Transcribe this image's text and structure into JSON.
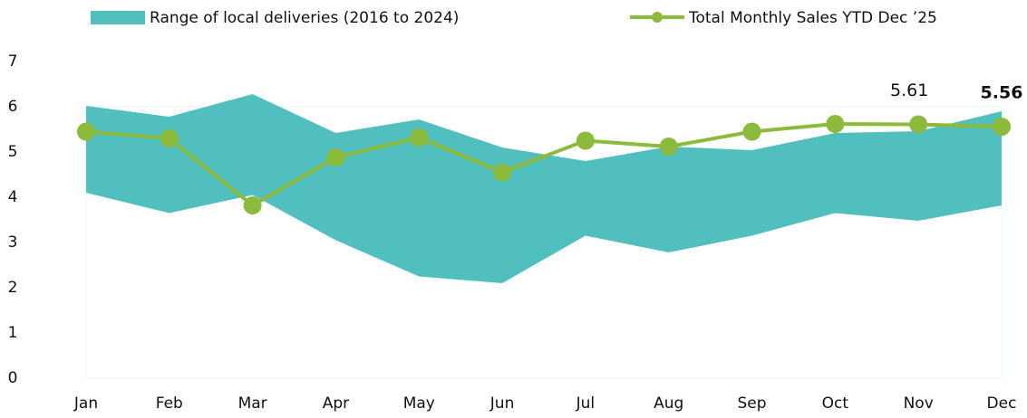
{
  "chart_data": {
    "type": "range-line",
    "categories": [
      "Jan",
      "Feb",
      "Mar",
      "Apr",
      "May",
      "Jun",
      "Jul",
      "Aug",
      "Sep",
      "Oct",
      "Nov",
      "Dec"
    ],
    "series": [
      {
        "name": "Range of local deliveries (2016 to 2024)",
        "type": "range",
        "color": "#52bfbf",
        "low": [
          4.1,
          3.65,
          4.05,
          3.05,
          2.25,
          2.1,
          3.15,
          2.78,
          3.15,
          3.65,
          3.48,
          3.82
        ],
        "high": [
          6.02,
          5.78,
          6.28,
          5.42,
          5.72,
          5.1,
          4.8,
          5.12,
          5.04,
          5.42,
          5.46,
          5.9
        ]
      },
      {
        "name": "Total Monthly Sales YTD Dec ’25",
        "type": "line",
        "color": "#8cba3a",
        "values": [
          5.45,
          5.3,
          3.82,
          4.88,
          5.32,
          4.55,
          5.25,
          5.12,
          5.45,
          5.62,
          5.61,
          5.56
        ],
        "value_labels": [
          null,
          null,
          null,
          null,
          null,
          null,
          null,
          null,
          null,
          null,
          "5.61",
          "5.56"
        ]
      }
    ],
    "ylim": [
      0,
      7
    ],
    "yticks": [
      0,
      1,
      2,
      3,
      4,
      5,
      6,
      7
    ],
    "grid": false
  }
}
